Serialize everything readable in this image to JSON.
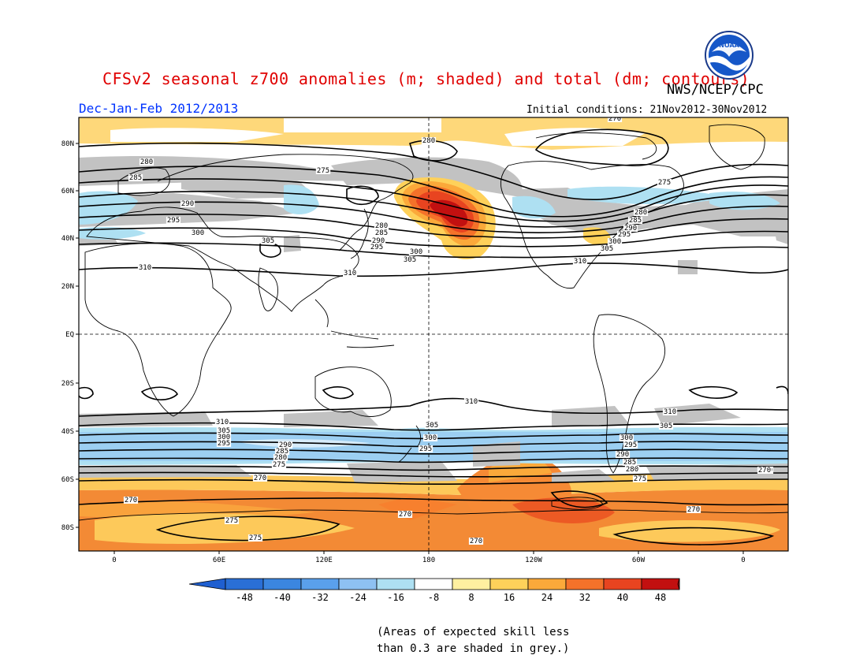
{
  "header": {
    "title": "CFSv2 seasonal z700 anomalies (m; shaded) and total (dm; contours)",
    "agency": "NWS/NCEP/CPC",
    "period": "Dec-Jan-Feb 2012/2013",
    "initial_conditions": "Initial conditions: 21Nov2012-30Nov2012",
    "logo_text": "NOAA"
  },
  "map": {
    "lat_labels": [
      "80N",
      "60N",
      "40N",
      "20N",
      "EQ",
      "20S",
      "40S",
      "60S",
      "80S"
    ],
    "lon_labels": [
      "0",
      "60E",
      "120E",
      "180",
      "120W",
      "60W",
      "0"
    ],
    "contour_labels": [
      {
        "text": "270"
      },
      {
        "text": "275"
      },
      {
        "text": "280"
      },
      {
        "text": "280"
      },
      {
        "text": "285"
      },
      {
        "text": "290"
      },
      {
        "text": "295"
      },
      {
        "text": "300"
      },
      {
        "text": "305"
      },
      {
        "text": "310"
      },
      {
        "text": "280"
      },
      {
        "text": "285"
      },
      {
        "text": "290"
      },
      {
        "text": "295"
      },
      {
        "text": "300"
      },
      {
        "text": "305"
      },
      {
        "text": "310"
      },
      {
        "text": "275"
      },
      {
        "text": "280"
      },
      {
        "text": "285"
      },
      {
        "text": "290"
      },
      {
        "text": "295"
      },
      {
        "text": "300"
      },
      {
        "text": "305"
      },
      {
        "text": "310"
      },
      {
        "text": "275"
      },
      {
        "text": "310"
      },
      {
        "text": "310"
      },
      {
        "text": "305"
      },
      {
        "text": "300"
      },
      {
        "text": "295"
      },
      {
        "text": "290"
      },
      {
        "text": "285"
      },
      {
        "text": "280"
      },
      {
        "text": "275"
      },
      {
        "text": "270"
      },
      {
        "text": "305"
      },
      {
        "text": "300"
      },
      {
        "text": "295"
      },
      {
        "text": "310"
      },
      {
        "text": "310"
      },
      {
        "text": "305"
      },
      {
        "text": "300"
      },
      {
        "text": "295"
      },
      {
        "text": "290"
      },
      {
        "text": "285"
      },
      {
        "text": "280"
      },
      {
        "text": "275"
      },
      {
        "text": "270"
      },
      {
        "text": "270"
      },
      {
        "text": "275"
      },
      {
        "text": "275"
      },
      {
        "text": "270"
      },
      {
        "text": "270"
      },
      {
        "text": "270"
      },
      {
        "text": "270"
      }
    ]
  },
  "colorbar": {
    "tick_labels": [
      "-48",
      "-40",
      "-32",
      "-24",
      "-16",
      "-8",
      "8",
      "16",
      "24",
      "32",
      "40",
      "48"
    ],
    "colors": [
      "#2a6fd6",
      "#3b86e0",
      "#5aa0ec",
      "#8ec1f2",
      "#aee0f2",
      "#ffffff",
      "#fff0a0",
      "#fed15a",
      "#fba93a",
      "#f4722a",
      "#e84420",
      "#c21010"
    ],
    "end_low_color": "#1f5fd0",
    "end_high_color": "#b00000"
  },
  "footnote": "(Areas of expected skill less\nthan 0.3 are shaded in grey.)",
  "colors": {
    "title": "#e00000",
    "period": "#0033ff",
    "skill_grey": "#c2c2c2"
  }
}
